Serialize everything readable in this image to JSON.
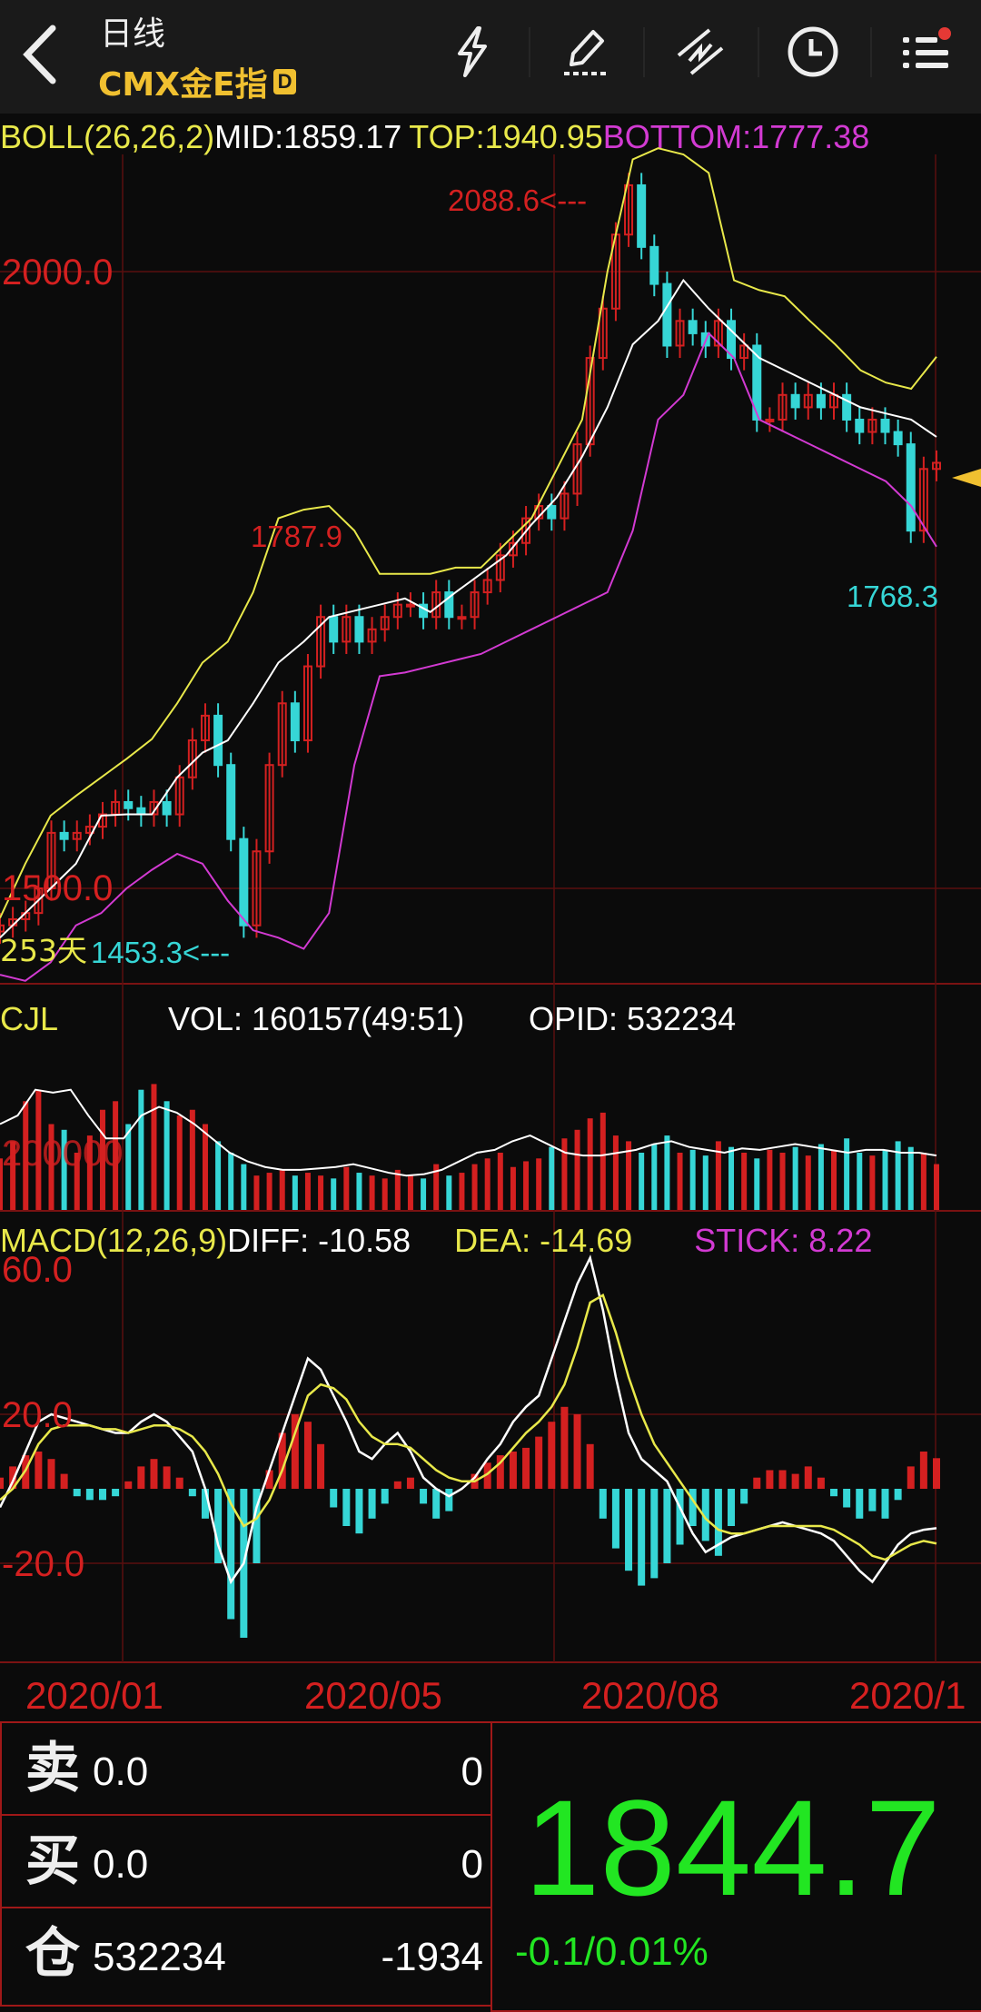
{
  "header": {
    "period": "日线",
    "instrument": "CMX金E指",
    "badge": "D",
    "icons": [
      "back-chevron-icon",
      "lightning-icon",
      "pencil-draw-icon",
      "indicator-line-icon",
      "clock-icon",
      "menu-list-icon"
    ],
    "notification_dot_color": "#e53935"
  },
  "boll": {
    "label": "BOLL(26,26,2)",
    "mid": "MID:1859.17",
    "top": "TOP:1940.95",
    "bottom": "BOTTOM:1777.38",
    "price_ticks": [
      "2000.0",
      "1500.0"
    ],
    "annotations": {
      "high": "2088.6<---",
      "mid_high": "1787.9",
      "recent_low": "1768.3",
      "days": "253天",
      "low": "1453.3<---"
    }
  },
  "cjl": {
    "label": "CJL",
    "vol": "VOL: 160157(49:51)",
    "opid": "OPID: 532234",
    "tick": "200000"
  },
  "macd": {
    "label": "MACD(12,26,9)",
    "diff": "DIFF: -10.58",
    "dea": "DEA: -14.69",
    "stick": "STICK: 8.22",
    "ticks": [
      "60.0",
      "20.0",
      "-20.0"
    ]
  },
  "dates": [
    "2020/01",
    "2020/05",
    "2020/08",
    "2020/1"
  ],
  "quote": {
    "sell_label": "卖",
    "sell_price": "0.0",
    "sell_qty": "0",
    "buy_label": "买",
    "buy_price": "0.0",
    "buy_qty": "0",
    "pos_label": "仓",
    "pos_value": "532234",
    "pos_change": "-1934",
    "last_price": "1844.7",
    "change": "-0.1/0.01%"
  },
  "colors": {
    "up": "#d42020",
    "down": "#36d6d6",
    "boll_top": "#e8e84a",
    "boll_mid": "#ffffff",
    "boll_bottom": "#d23ad2",
    "price_green": "#22e622",
    "grid": "#5a0f0f",
    "accent": "#f0c030"
  },
  "chart_data": [
    {
      "type": "candlestick",
      "title": "BOLL(26,26,2)",
      "ylim": [
        1420,
        2110
      ],
      "close": [
        1470,
        1475,
        1480,
        1500,
        1545,
        1540,
        1545,
        1550,
        1560,
        1570,
        1565,
        1560,
        1570,
        1560,
        1590,
        1620,
        1640,
        1600,
        1540,
        1470,
        1530,
        1600,
        1650,
        1620,
        1680,
        1720,
        1700,
        1720,
        1700,
        1710,
        1720,
        1730,
        1730,
        1720,
        1740,
        1720,
        1720,
        1740,
        1750,
        1770,
        1780,
        1800,
        1810,
        1800,
        1820,
        1860,
        1930,
        1970,
        2030,
        2070,
        2020,
        1990,
        1940,
        1960,
        1950,
        1940,
        1960,
        1930,
        1940,
        1880,
        1880,
        1900,
        1890,
        1900,
        1890,
        1900,
        1880,
        1870,
        1880,
        1870,
        1860,
        1790,
        1840,
        1845
      ],
      "boll_top": [
        1476,
        1520,
        1559,
        1575,
        1590,
        1605,
        1621,
        1650,
        1683,
        1700,
        1740,
        1800,
        1807,
        1810,
        1790,
        1755,
        1755,
        1755,
        1760,
        1760,
        1780,
        1800,
        1840,
        1880,
        2000,
        2091,
        2100,
        2095,
        2080,
        1993,
        1985,
        1980,
        1960,
        1941,
        1920,
        1910,
        1905,
        1931
      ],
      "boll_mid": [
        1460,
        1480,
        1500,
        1520,
        1559,
        1560,
        1560,
        1590,
        1610,
        1620,
        1650,
        1683,
        1700,
        1720,
        1725,
        1730,
        1735,
        1724,
        1740,
        1755,
        1770,
        1795,
        1817,
        1850,
        1890,
        1941,
        1960,
        1993,
        1970,
        1950,
        1930,
        1920,
        1910,
        1900,
        1890,
        1885,
        1880,
        1866
      ],
      "boll_bottom": [
        1430,
        1425,
        1440,
        1470,
        1480,
        1500,
        1515,
        1528,
        1520,
        1490,
        1466,
        1460,
        1451,
        1480,
        1600,
        1672,
        1675,
        1680,
        1685,
        1690,
        1700,
        1710,
        1720,
        1730,
        1740,
        1790,
        1880,
        1900,
        1950,
        1930,
        1880,
        1870,
        1860,
        1850,
        1840,
        1830,
        1810,
        1777
      ]
    },
    {
      "type": "bar",
      "title": "CJL",
      "values": [
        180000,
        240000,
        380000,
        420000,
        300000,
        280000,
        200000,
        260000,
        350000,
        380000,
        300000,
        420000,
        440000,
        380000,
        330000,
        350000,
        300000,
        240000,
        200000,
        160000,
        120000,
        130000,
        140000,
        120000,
        130000,
        120000,
        110000,
        150000,
        130000,
        120000,
        110000,
        140000,
        120000,
        110000,
        160000,
        120000,
        130000,
        160000,
        180000,
        200000,
        150000,
        170000,
        180000,
        220000,
        250000,
        280000,
        320000,
        340000,
        260000,
        240000,
        200000,
        230000,
        260000,
        200000,
        210000,
        190000,
        240000,
        220000,
        200000,
        180000,
        210000,
        200000,
        220000,
        190000,
        230000,
        210000,
        250000,
        200000,
        190000,
        210000,
        240000,
        220000,
        200000,
        160157
      ],
      "avg_line": [
        300000,
        330000,
        420000,
        410000,
        420000,
        330000,
        250000,
        250000,
        330000,
        360000,
        340000,
        300000,
        250000,
        200000,
        170000,
        150000,
        140000,
        140000,
        145000,
        150000,
        160000,
        145000,
        130000,
        120000,
        125000,
        140000,
        170000,
        200000,
        210000,
        240000,
        260000,
        230000,
        200000,
        190000,
        190000,
        200000,
        210000,
        230000,
        240000,
        220000,
        210000,
        200000,
        215000,
        210000,
        220000,
        230000,
        220000,
        210000,
        200000,
        210000,
        210000,
        200000,
        200000,
        190000
      ]
    },
    {
      "type": "bar",
      "title": "MACD(12,26,9)",
      "ylim": [
        -45,
        70
      ],
      "stick": [
        3,
        6,
        9,
        10,
        8,
        4,
        -2,
        -3,
        -3,
        -2,
        2,
        6,
        8,
        6,
        3,
        -2,
        -8,
        -20,
        -35,
        -40,
        -20,
        5,
        15,
        20,
        18,
        12,
        -5,
        -10,
        -12,
        -8,
        -4,
        2,
        3,
        -4,
        -8,
        -6,
        0,
        4,
        7,
        9,
        10,
        11,
        14,
        18,
        22,
        20,
        12,
        -8,
        -16,
        -22,
        -26,
        -24,
        -20,
        -15,
        -10,
        -14,
        -18,
        -10,
        -4,
        3,
        5,
        5,
        4,
        6,
        3,
        -2,
        -5,
        -8,
        -6,
        -8,
        -3,
        6,
        10,
        8.22
      ],
      "diff": [
        -5,
        2,
        10,
        18,
        20,
        19,
        18,
        17,
        16,
        15,
        15,
        18,
        20,
        18,
        14,
        10,
        0,
        -15,
        -25,
        -20,
        -5,
        5,
        15,
        25,
        35,
        32,
        25,
        18,
        10,
        8,
        12,
        15,
        10,
        3,
        0,
        -2,
        0,
        3,
        8,
        12,
        18,
        22,
        25,
        35,
        45,
        55,
        62,
        48,
        30,
        15,
        8,
        5,
        2,
        -5,
        -12,
        -17,
        -15,
        -13,
        -12,
        -11,
        -10,
        -9,
        -10,
        -11,
        -12,
        -14,
        -18,
        -22,
        -25,
        -20,
        -15,
        -12,
        -11,
        -10.58
      ],
      "dea": [
        -3,
        0,
        5,
        12,
        16,
        17,
        17,
        17,
        16,
        16,
        15,
        16,
        17,
        17,
        16,
        14,
        10,
        4,
        -4,
        -10,
        -8,
        -3,
        5,
        15,
        25,
        28,
        27,
        24,
        18,
        14,
        12,
        12,
        11,
        8,
        5,
        3,
        2,
        2,
        4,
        7,
        11,
        15,
        18,
        22,
        28,
        38,
        50,
        52,
        42,
        30,
        20,
        12,
        7,
        2,
        -3,
        -8,
        -11,
        -12,
        -12,
        -11,
        -10,
        -10,
        -10,
        -10,
        -10,
        -11,
        -13,
        -15,
        -18,
        -19,
        -17,
        -15,
        -14,
        -14.69
      ]
    }
  ]
}
